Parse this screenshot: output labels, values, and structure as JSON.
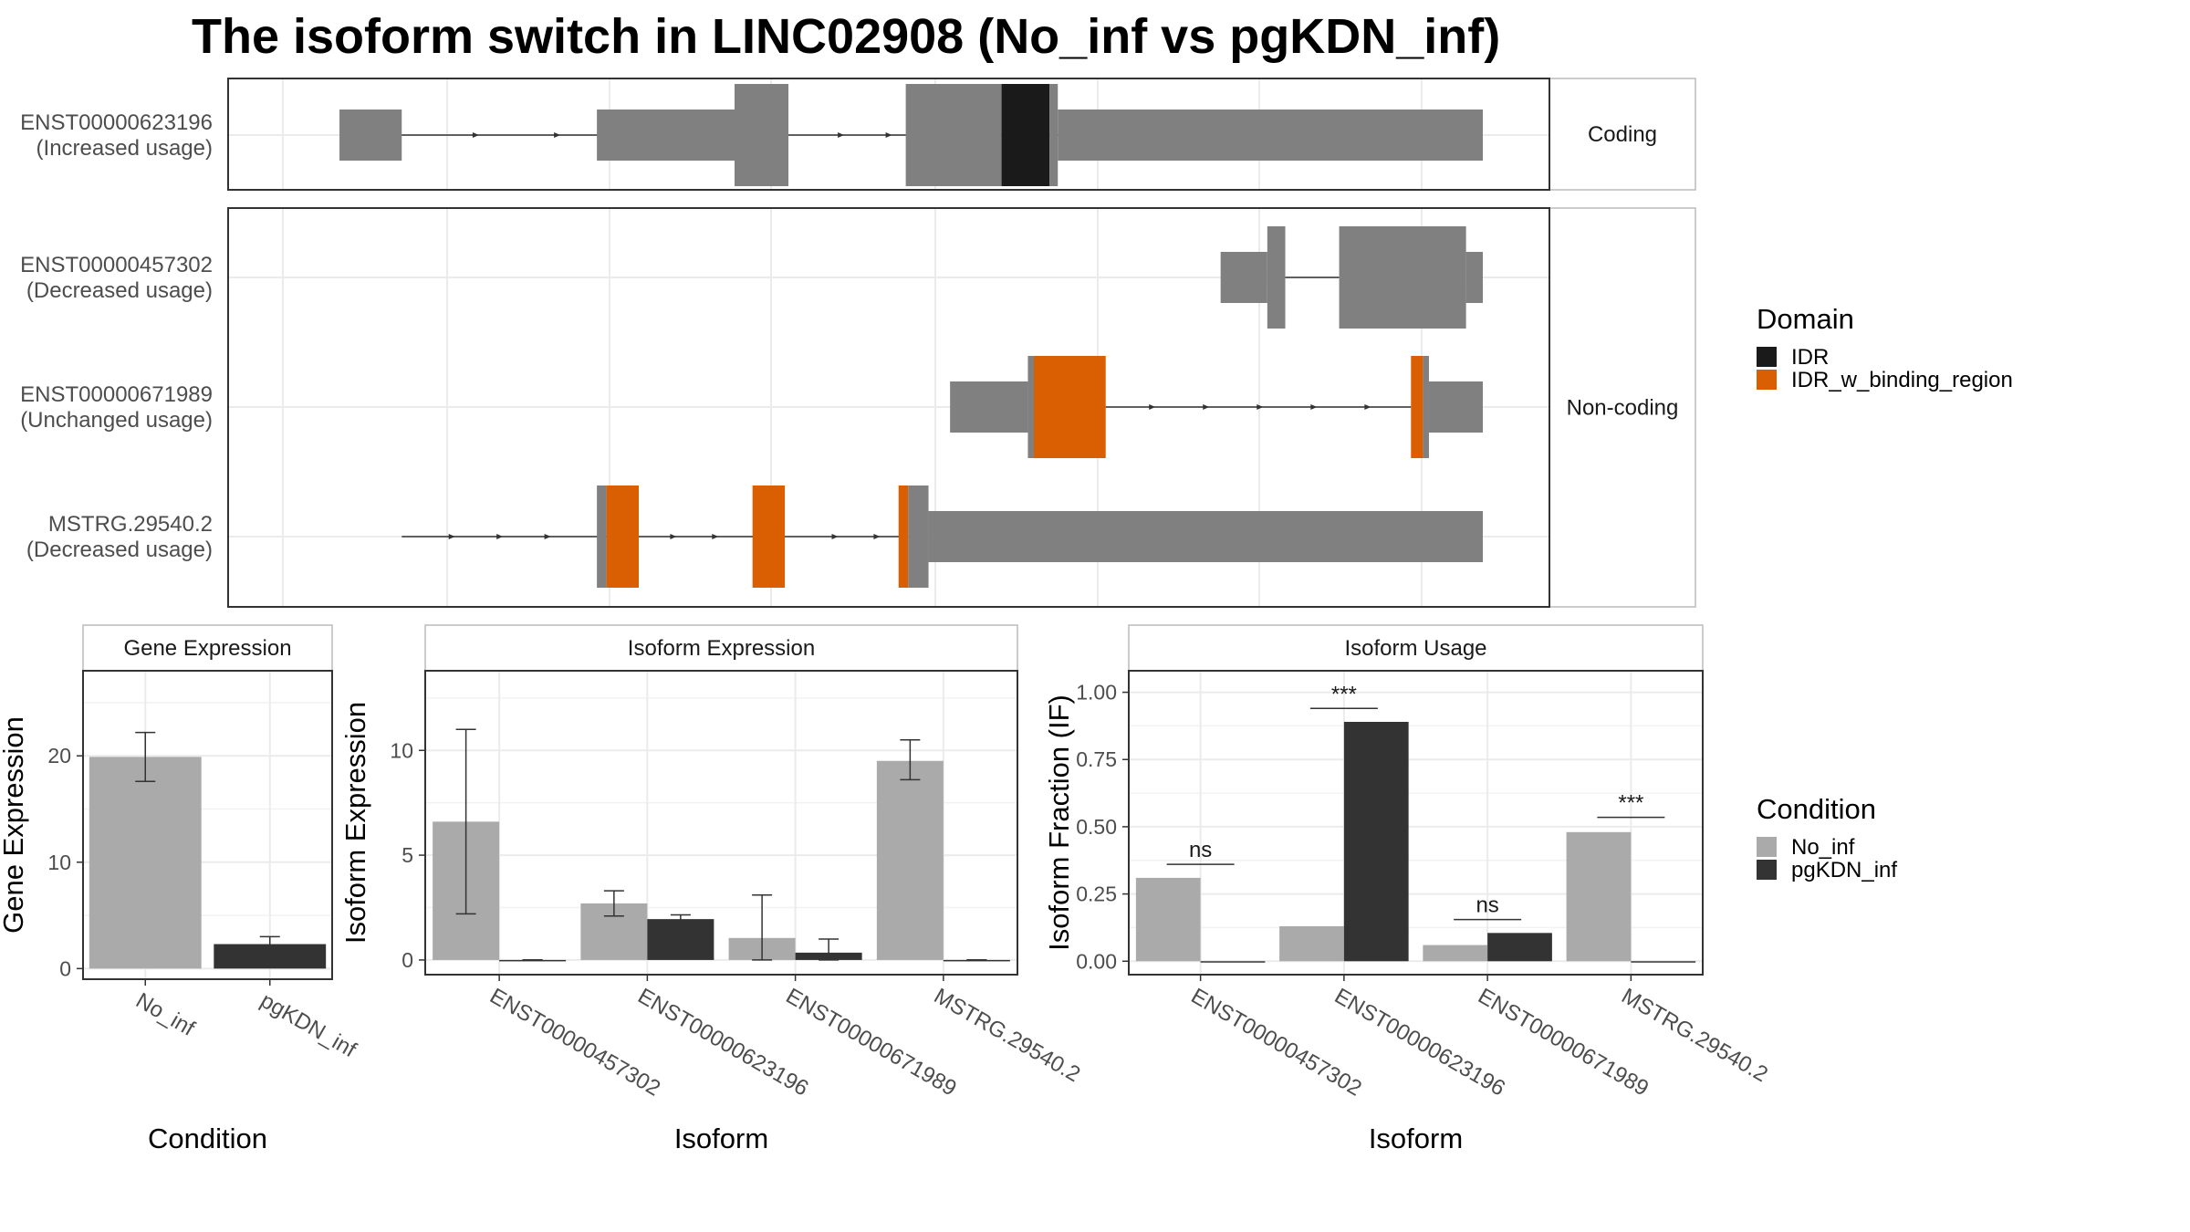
{
  "title": "The isoform switch in LINC02908 (No_inf vs pgKDN_inf)",
  "colors": {
    "exon": "#808080",
    "IDR": "#1a1a1a",
    "IDR_w_binding_region": "#d95f02",
    "No_inf": "#aaaaaa",
    "pgKDN_inf": "#333333",
    "grid": "#ebebeb",
    "border": "#333333"
  },
  "transcripts": {
    "strips": [
      "Coding",
      "Non-coding"
    ],
    "xlim": [
      0,
      1000
    ],
    "tracks": [
      {
        "id": "ENST00000623196",
        "usage": "(Increased usage)",
        "panel": 0,
        "row": 0,
        "intron": [
          75,
          860
        ],
        "arrows": [
          160,
          228,
          295,
          465,
          505,
          550
        ],
        "blocks": [
          {
            "x0": 45,
            "x1": 97,
            "h": "t",
            "fill": "exon"
          },
          {
            "x0": 260,
            "x1": 375,
            "h": "t",
            "fill": "exon"
          },
          {
            "x0": 375,
            "x1": 420,
            "h": "T",
            "fill": "exon"
          },
          {
            "x0": 518,
            "x1": 598,
            "h": "T",
            "fill": "exon"
          },
          {
            "x0": 598,
            "x1": 638,
            "h": "T",
            "fill": "IDR"
          },
          {
            "x0": 638,
            "x1": 645,
            "h": "T",
            "fill": "exon"
          },
          {
            "x0": 645,
            "x1": 1000,
            "h": "t",
            "fill": "exon"
          }
        ]
      },
      {
        "id": "ENST00000457302",
        "usage": "(Decreased usage)",
        "panel": 1,
        "row": 0,
        "intron": [
          835,
          880
        ],
        "arrows": [],
        "blocks": [
          {
            "x0": 781,
            "x1": 820,
            "h": "t",
            "fill": "exon"
          },
          {
            "x0": 820,
            "x1": 835,
            "h": "T",
            "fill": "exon"
          },
          {
            "x0": 880,
            "x1": 986,
            "h": "T",
            "fill": "exon"
          },
          {
            "x0": 986,
            "x1": 1000,
            "h": "t",
            "fill": "exon"
          }
        ]
      },
      {
        "id": "ENST00000671989",
        "usage": "(Unchanged usage)",
        "panel": 1,
        "row": 1,
        "intron": [
          685,
          940
        ],
        "arrows": [
          725,
          770,
          815,
          860,
          905
        ],
        "blocks": [
          {
            "x0": 555,
            "x1": 620,
            "h": "t",
            "fill": "exon"
          },
          {
            "x0": 620,
            "x1": 625,
            "h": "T",
            "fill": "exon"
          },
          {
            "x0": 625,
            "x1": 685,
            "h": "T",
            "fill": "IDR_w_binding_region"
          },
          {
            "x0": 940,
            "x1": 950,
            "h": "T",
            "fill": "IDR_w_binding_region"
          },
          {
            "x0": 950,
            "x1": 955,
            "h": "T",
            "fill": "exon"
          },
          {
            "x0": 955,
            "x1": 1000,
            "h": "t",
            "fill": "exon"
          }
        ]
      },
      {
        "id": "MSTRG.29540.2",
        "usage": "(Decreased usage)",
        "panel": 1,
        "row": 2,
        "intron": [
          97,
          520
        ],
        "arrows": [
          140,
          180,
          220,
          325,
          360,
          460,
          495
        ],
        "blocks": [
          {
            "x0": 260,
            "x1": 268,
            "h": "T",
            "fill": "exon"
          },
          {
            "x0": 268,
            "x1": 295,
            "h": "T",
            "fill": "IDR_w_binding_region"
          },
          {
            "x0": 390,
            "x1": 417,
            "h": "T",
            "fill": "IDR_w_binding_region"
          },
          {
            "x0": 512,
            "x1": 520,
            "h": "T",
            "fill": "IDR_w_binding_region"
          },
          {
            "x0": 520,
            "x1": 537,
            "h": "T",
            "fill": "exon"
          },
          {
            "x0": 537,
            "x1": 1000,
            "h": "t",
            "fill": "exon"
          }
        ]
      }
    ]
  },
  "legend_domain": {
    "title": "Domain",
    "items": [
      {
        "label": "IDR",
        "color": "#1a1a1a"
      },
      {
        "label": "IDR_w_binding_region",
        "color": "#d95f02"
      }
    ]
  },
  "legend_condition": {
    "title": "Condition",
    "items": [
      {
        "label": "No_inf",
        "color": "#aaaaaa"
      },
      {
        "label": "pgKDN_inf",
        "color": "#333333"
      }
    ]
  },
  "chart_data": [
    {
      "type": "bar",
      "title": "Gene Expression",
      "xlabel": "Condition",
      "ylabel": "Gene Expression",
      "categories": [
        "No_inf",
        "pgKDN_inf"
      ],
      "values": [
        19.9,
        2.3
      ],
      "errors": [
        [
          17.6,
          22.2
        ],
        [
          1.6,
          3.0
        ]
      ],
      "ylim": [
        -1,
        28
      ],
      "yticks": [
        0,
        10,
        20
      ]
    },
    {
      "type": "bar",
      "title": "Isoform Expression",
      "xlabel": "Isoform",
      "ylabel": "Isoform Expression",
      "categories": [
        "ENST00000457302",
        "ENST00000623196",
        "ENST00000671989",
        "MSTRG.29540.2"
      ],
      "series": [
        {
          "name": "No_inf",
          "values": [
            6.6,
            2.7,
            1.05,
            9.5
          ],
          "errors": [
            [
              2.2,
              11.0
            ],
            [
              2.1,
              3.3
            ],
            [
              0,
              3.1
            ],
            [
              8.6,
              10.5
            ]
          ]
        },
        {
          "name": "pgKDN_inf",
          "values": [
            0,
            1.95,
            0.35,
            0
          ],
          "errors": [
            [
              0,
              0
            ],
            [
              1.75,
              2.15
            ],
            [
              0,
              1.0
            ],
            [
              0,
              0
            ]
          ]
        }
      ],
      "ylim": [
        -0.7,
        13.8
      ],
      "yticks": [
        0,
        5,
        10
      ]
    },
    {
      "type": "bar",
      "title": "Isoform Usage",
      "xlabel": "Isoform",
      "ylabel": "Isoform Fraction (IF)",
      "categories": [
        "ENST00000457302",
        "ENST00000623196",
        "ENST00000671989",
        "MSTRG.29540.2"
      ],
      "series": [
        {
          "name": "No_inf",
          "values": [
            0.31,
            0.13,
            0.06,
            0.48
          ]
        },
        {
          "name": "pgKDN_inf",
          "values": [
            0.0,
            0.89,
            0.105,
            0.0
          ]
        }
      ],
      "significance": [
        {
          "category": "ENST00000457302",
          "label": "ns",
          "y": 0.36
        },
        {
          "category": "ENST00000623196",
          "label": "***",
          "y": 0.94
        },
        {
          "category": "ENST00000671989",
          "label": "ns",
          "y": 0.155
        },
        {
          "category": "MSTRG.29540.2",
          "label": "***",
          "y": 0.535
        }
      ],
      "ylim": [
        -0.05,
        1.08
      ],
      "yticks": [
        0.0,
        0.25,
        0.5,
        0.75,
        1.0
      ],
      "ytick_labels": [
        "0.00",
        "0.25",
        "0.50",
        "0.75",
        "1.00"
      ]
    }
  ]
}
